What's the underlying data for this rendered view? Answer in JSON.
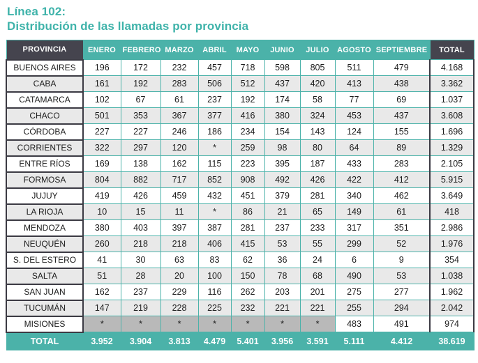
{
  "title": {
    "line1": "Línea 102:",
    "line2": "Distribución de las llamadas por provincia"
  },
  "colors": {
    "teal": "#4bb2a9",
    "dark": "#45444e",
    "dark-border": "#3b3a43",
    "gray-row": "#e9e9e9",
    "masked": "#b9b9b9",
    "accent-text": "#3fb3aa",
    "text": "#1c1c1c"
  },
  "table": {
    "masked_value": "*",
    "columns": [
      "PROVINCIA",
      "ENERO",
      "FEBRERO",
      "MARZO",
      "ABRIL",
      "MAYO",
      "JUNIO",
      "JULIO",
      "AGOSTO",
      "SEPTIEMBRE",
      "TOTAL"
    ],
    "rows": [
      {
        "provincia": "BUENOS AIRES",
        "values": [
          "196",
          "172",
          "232",
          "457",
          "718",
          "598",
          "805",
          "511",
          "479"
        ],
        "total": "4.168"
      },
      {
        "provincia": "CABA",
        "values": [
          "161",
          "192",
          "283",
          "506",
          "512",
          "437",
          "420",
          "413",
          "438"
        ],
        "total": "3.362"
      },
      {
        "provincia": "CATAMARCA",
        "values": [
          "102",
          "67",
          "61",
          "237",
          "192",
          "174",
          "58",
          "77",
          "69"
        ],
        "total": "1.037"
      },
      {
        "provincia": "CHACO",
        "values": [
          "501",
          "353",
          "367",
          "377",
          "416",
          "380",
          "324",
          "453",
          "437"
        ],
        "total": "3.608"
      },
      {
        "provincia": "CÓRDOBA",
        "values": [
          "227",
          "227",
          "246",
          "186",
          "234",
          "154",
          "143",
          "124",
          "155"
        ],
        "total": "1.696"
      },
      {
        "provincia": "CORRIENTES",
        "values": [
          "322",
          "297",
          "120",
          "*",
          "259",
          "98",
          "80",
          "64",
          "89"
        ],
        "total": "1.329"
      },
      {
        "provincia": "ENTRE RÍOS",
        "values": [
          "169",
          "138",
          "162",
          "115",
          "223",
          "395",
          "187",
          "433",
          "283"
        ],
        "total": "2.105"
      },
      {
        "provincia": "FORMOSA",
        "values": [
          "804",
          "882",
          "717",
          "852",
          "908",
          "492",
          "426",
          "422",
          "412"
        ],
        "total": "5.915"
      },
      {
        "provincia": "JUJUY",
        "values": [
          "419",
          "426",
          "459",
          "432",
          "451",
          "379",
          "281",
          "340",
          "462"
        ],
        "total": "3.649"
      },
      {
        "provincia": "LA RIOJA",
        "values": [
          "10",
          "15",
          "11",
          "*",
          "86",
          "21",
          "65",
          "149",
          "61"
        ],
        "total": "418"
      },
      {
        "provincia": "MENDOZA",
        "values": [
          "380",
          "403",
          "397",
          "387",
          "281",
          "237",
          "233",
          "317",
          "351"
        ],
        "total": "2.986"
      },
      {
        "provincia": "NEUQUÉN",
        "values": [
          "260",
          "218",
          "218",
          "406",
          "415",
          "53",
          "55",
          "299",
          "52"
        ],
        "total": "1.976"
      },
      {
        "provincia": "S. DEL ESTERO",
        "values": [
          "41",
          "30",
          "63",
          "83",
          "62",
          "36",
          "24",
          "6",
          "9"
        ],
        "total": "354"
      },
      {
        "provincia": "SALTA",
        "values": [
          "51",
          "28",
          "20",
          "100",
          "150",
          "78",
          "68",
          "490",
          "53"
        ],
        "total": "1.038"
      },
      {
        "provincia": "SAN JUAN",
        "values": [
          "162",
          "237",
          "229",
          "116",
          "262",
          "203",
          "201",
          "275",
          "277"
        ],
        "total": "1.962"
      },
      {
        "provincia": "TUCUMÁN",
        "values": [
          "147",
          "219",
          "228",
          "225",
          "232",
          "221",
          "221",
          "255",
          "294"
        ],
        "total": "2.042"
      },
      {
        "provincia": "MISIONES",
        "values": [
          "*",
          "*",
          "*",
          "*",
          "*",
          "*",
          "*",
          "483",
          "491"
        ],
        "total": "974"
      }
    ],
    "total_row": {
      "label": "TOTAL",
      "values": [
        "3.952",
        "3.904",
        "3.813",
        "4.479",
        "5.401",
        "3.956",
        "3.591",
        "5.111",
        "4.412"
      ],
      "total": "38.619"
    }
  }
}
